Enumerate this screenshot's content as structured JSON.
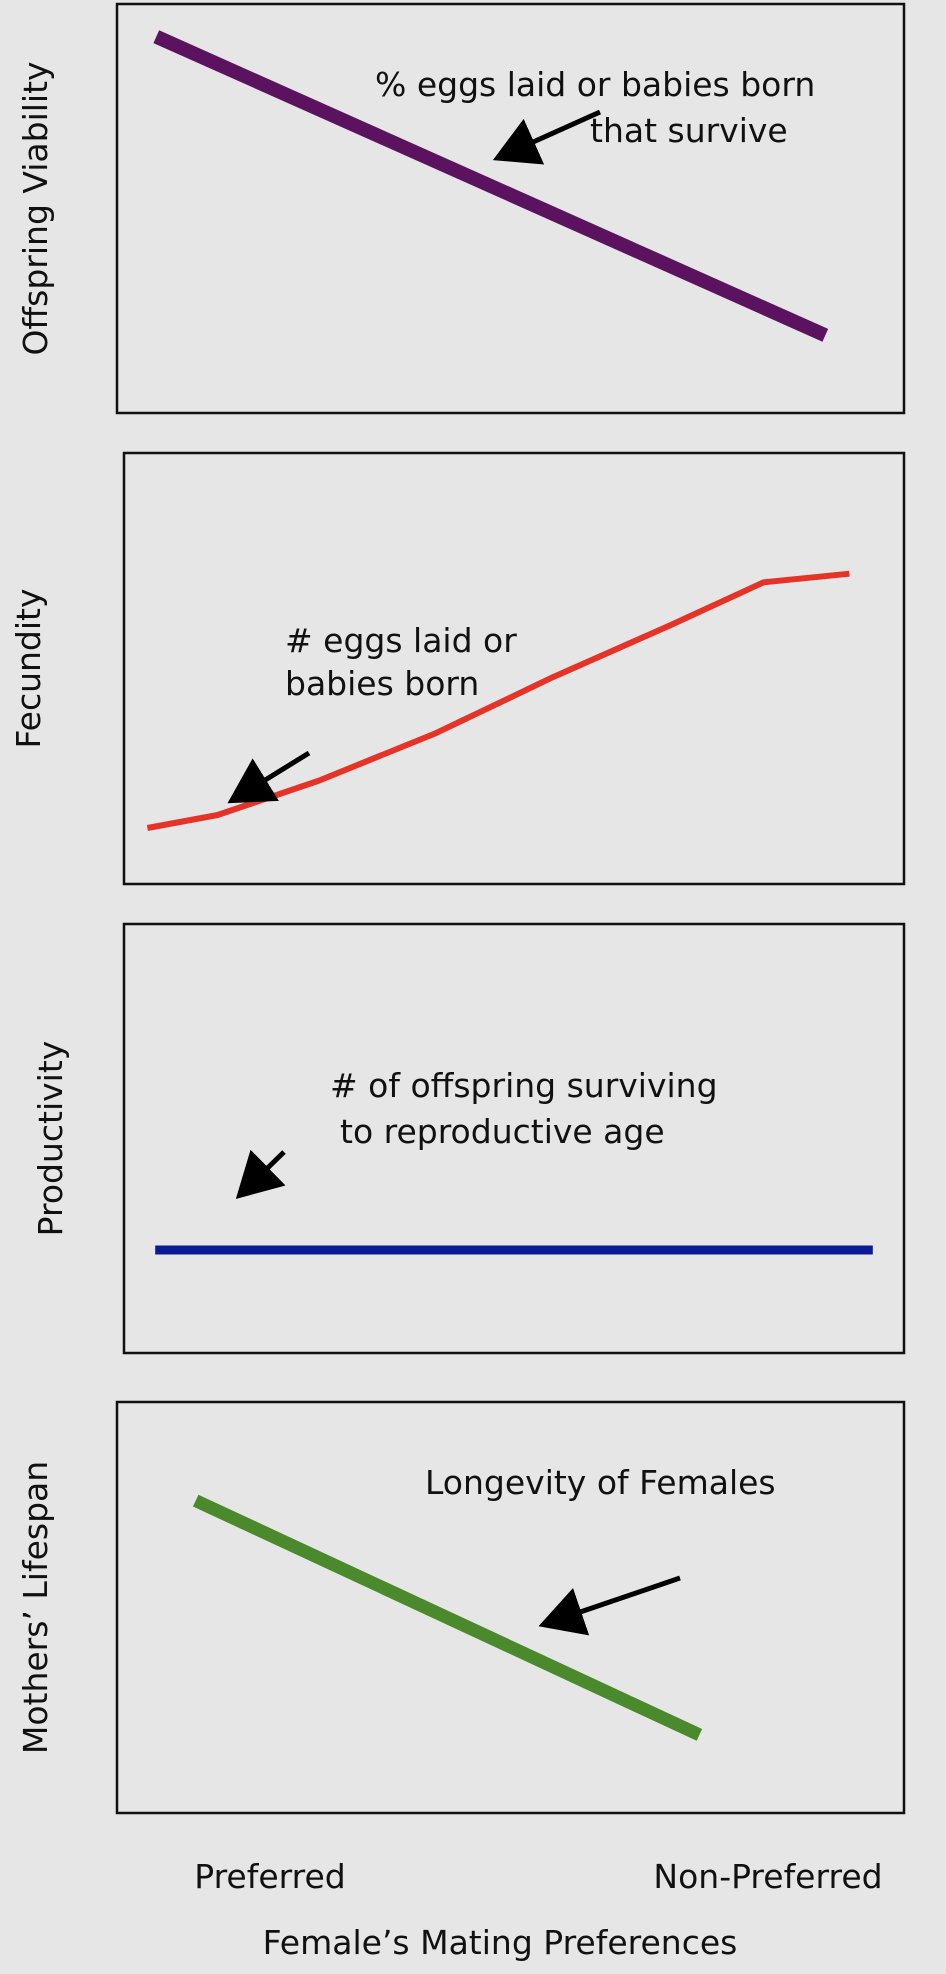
{
  "figure": {
    "x_axis": {
      "label": "Female’s Mating Preferences",
      "ticks": [
        "Preferred",
        "Non-Preferred"
      ]
    }
  },
  "chart_data": [
    {
      "type": "line",
      "ylabel": "Offspring Viability",
      "annotation": [
        "% eggs laid or babies born",
        "that survive"
      ],
      "series": [
        {
          "color": "#5b1360",
          "x": [
            0.05,
            0.9
          ],
          "y": [
            0.92,
            0.19
          ]
        }
      ],
      "xlim": [
        0,
        1
      ],
      "ylim": [
        0,
        1
      ],
      "grid": false
    },
    {
      "type": "line",
      "ylabel": "Fecundity",
      "annotation": [
        "# eggs laid or",
        "babies born"
      ],
      "series": [
        {
          "color": "#e63327",
          "x": [
            0.03,
            0.12,
            0.25,
            0.4,
            0.55,
            0.7,
            0.82,
            0.93
          ],
          "y": [
            0.13,
            0.16,
            0.24,
            0.35,
            0.48,
            0.6,
            0.7,
            0.72
          ]
        }
      ],
      "xlim": [
        0,
        1
      ],
      "ylim": [
        0,
        1
      ],
      "grid": false
    },
    {
      "type": "line",
      "ylabel": "Productivity",
      "annotation": [
        "# of offspring surviving",
        "to reproductive age"
      ],
      "series": [
        {
          "color": "#0a1a96",
          "x": [
            0.04,
            0.96
          ],
          "y": [
            0.24,
            0.24
          ]
        }
      ],
      "xlim": [
        0,
        1
      ],
      "ylim": [
        0,
        1
      ],
      "grid": false
    },
    {
      "type": "line",
      "ylabel": "Mothers’ Lifespan",
      "annotation": [
        "Longevity of Females"
      ],
      "series": [
        {
          "color": "#4a8a2c",
          "x": [
            0.1,
            0.74
          ],
          "y": [
            0.76,
            0.19
          ]
        }
      ],
      "xlim": [
        0,
        1
      ],
      "ylim": [
        0,
        1
      ],
      "grid": false
    }
  ]
}
